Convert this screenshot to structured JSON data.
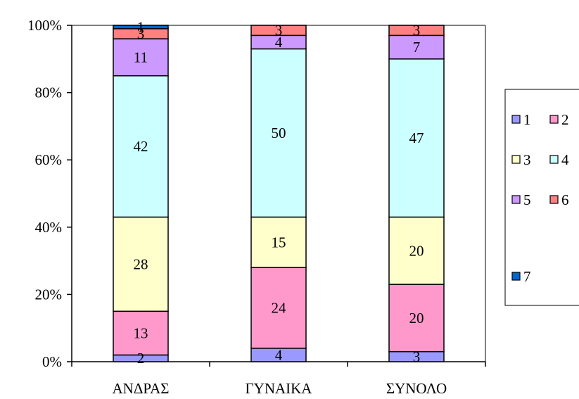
{
  "chart_data": {
    "type": "bar",
    "stacked": true,
    "normalized": true,
    "title": "",
    "xlabel": "",
    "ylabel": "",
    "ylim": [
      0,
      100
    ],
    "y_ticks": [
      "0%",
      "20%",
      "40%",
      "60%",
      "80%",
      "100%"
    ],
    "categories": [
      "ΑΝΔΡΑΣ",
      "ΓΥΝΑΙΚΑ",
      "ΣΥΝΟΛΟ"
    ],
    "series": [
      {
        "name": "1",
        "color": "#9999ff",
        "values": [
          2,
          4,
          3
        ],
        "labels": [
          "2",
          "4",
          "3"
        ]
      },
      {
        "name": "2",
        "color": "#ff99cc",
        "values": [
          13,
          24,
          20
        ],
        "labels": [
          "13",
          "24",
          "20"
        ]
      },
      {
        "name": "3",
        "color": "#ffffcc",
        "values": [
          28,
          15,
          20
        ],
        "labels": [
          "28",
          "15",
          "20"
        ]
      },
      {
        "name": "4",
        "color": "#ccffff",
        "values": [
          42,
          50,
          47
        ],
        "labels": [
          "42",
          "50",
          "47"
        ]
      },
      {
        "name": "5",
        "color": "#cc99ff",
        "values": [
          11,
          4,
          7
        ],
        "labels": [
          "11",
          "4",
          "7"
        ]
      },
      {
        "name": "6",
        "color": "#ff8080",
        "values": [
          3,
          3,
          3
        ],
        "labels": [
          "3",
          "3",
          "3"
        ]
      },
      {
        "name": "7",
        "color": "#0066cc",
        "values": [
          1,
          0,
          0
        ],
        "labels": [
          "1",
          "",
          ""
        ]
      }
    ],
    "grid": false,
    "legend_position": "right"
  }
}
